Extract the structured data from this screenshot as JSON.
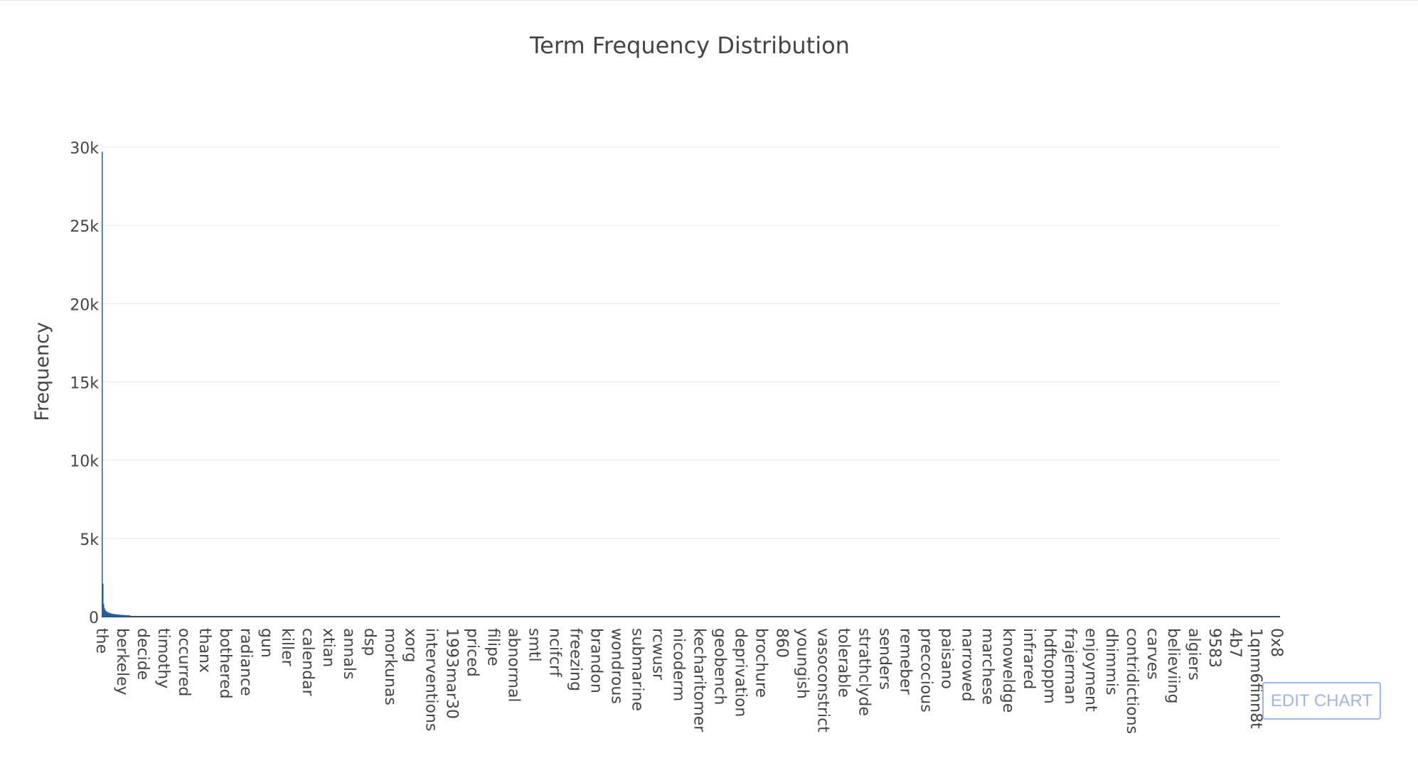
{
  "chart_data": {
    "type": "bar",
    "title": "Term Frequency Distribution",
    "xlabel": "",
    "ylabel": "Frequency",
    "ylim": [
      0,
      30000
    ],
    "yticks": [
      0,
      5000,
      10000,
      15000,
      20000,
      25000,
      30000
    ],
    "ytick_labels": [
      "0",
      "5k",
      "10k",
      "15k",
      "20k",
      "25k",
      "30k"
    ],
    "grid": true,
    "legend": "none",
    "bar_color": "#1f5fa8",
    "x_tick_labels": [
      "the",
      "berkeley",
      "decide",
      "timothy",
      "occurred",
      "thanx",
      "bothered",
      "radiance",
      "gun",
      "killer",
      "calendar",
      "xtian",
      "annals",
      "dsp",
      "morkunas",
      "xorg",
      "interventions",
      "1993mar30",
      "priced",
      "filipe",
      "abnormal",
      "smtl",
      "ncifcrf",
      "freezing",
      "brandon",
      "wondrous",
      "submarine",
      "rcwusr",
      "nicoderm",
      "kecharitomer",
      "geobench",
      "deprivation",
      "brochure",
      "860",
      "youngish",
      "vasoconstrict",
      "tolerable",
      "strathclyde",
      "senders",
      "remeber",
      "precocious",
      "paisano",
      "narrowed",
      "marchese",
      "knoweldge",
      "infrared",
      "hdftoppm",
      "frajerman",
      "enjoyment",
      "dhimmis",
      "contridictions",
      "carves",
      "believiing",
      "algiers",
      "9583",
      "4b7",
      "1qnm6finn8t",
      "0x8"
    ],
    "head_values": [
      29700,
      2100,
      820,
      560,
      440,
      380,
      330,
      300,
      280,
      260,
      240,
      225,
      210,
      200,
      190,
      180,
      172,
      165,
      158,
      152,
      146,
      140,
      135,
      130,
      126,
      122,
      118,
      114,
      110,
      107,
      104,
      101,
      98,
      95,
      92,
      90,
      88,
      86,
      84,
      82
    ],
    "tail_value": 20
  },
  "ui": {
    "edit_chart_label": "EDIT CHART"
  }
}
